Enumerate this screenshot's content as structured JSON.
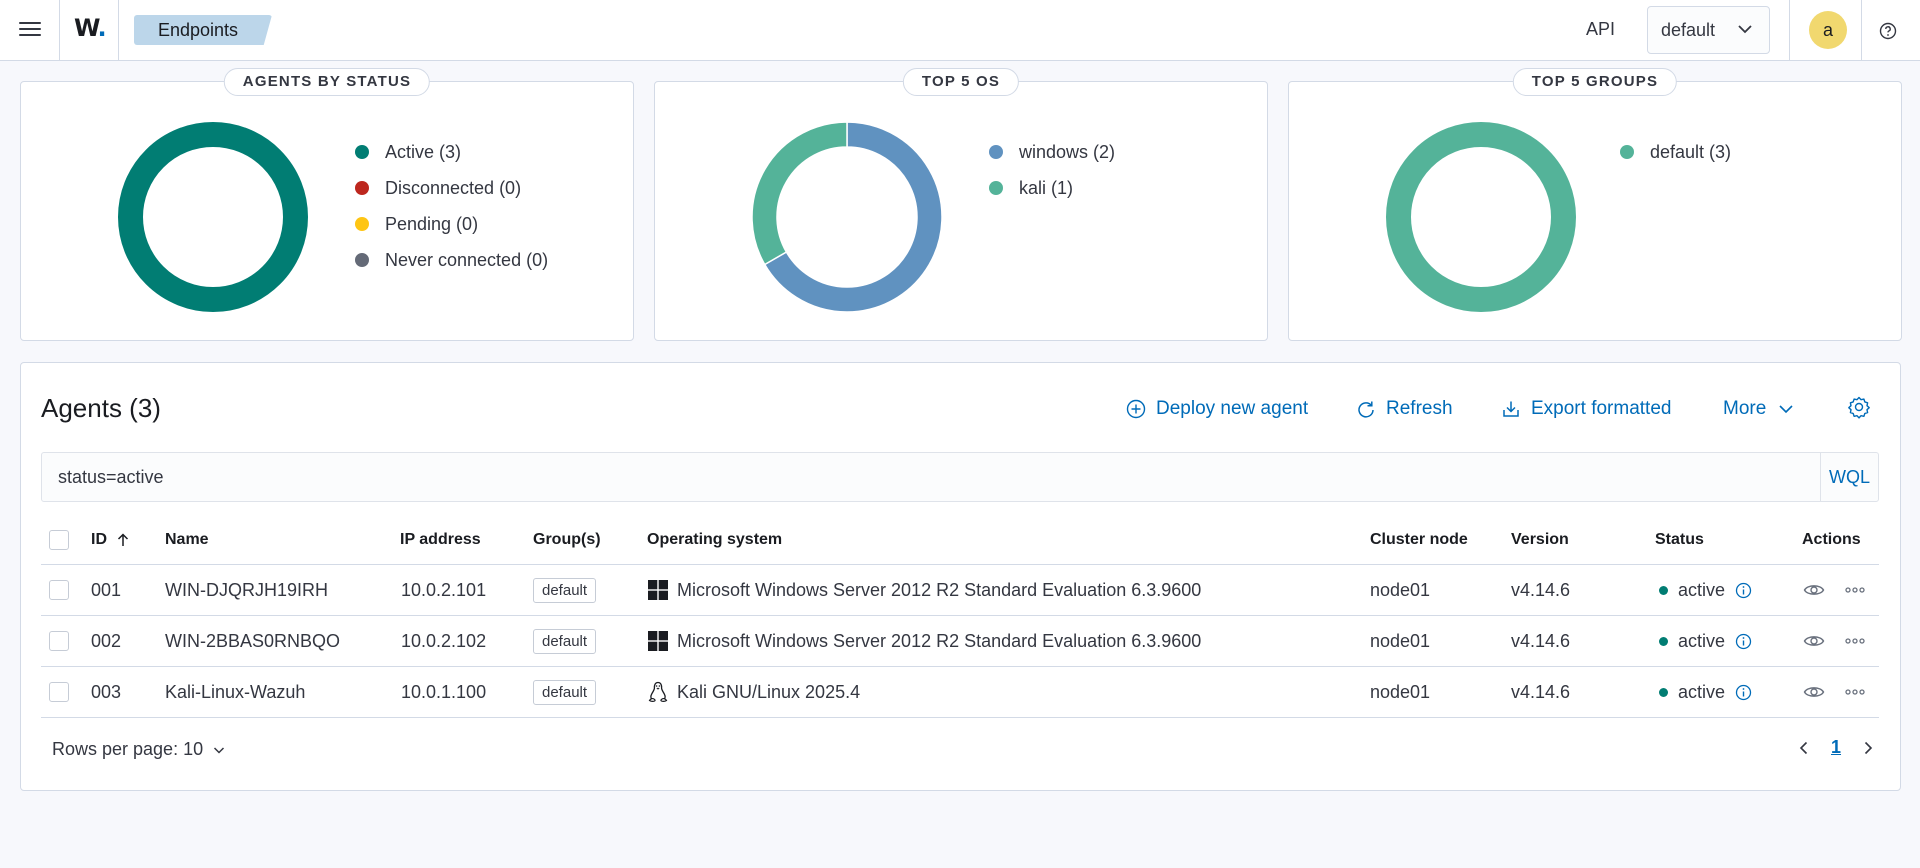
{
  "header": {
    "logo": "W",
    "breadcrumb": "Endpoints",
    "api_label": "API",
    "namespace": "default",
    "avatar_initial": "a"
  },
  "cards": [
    {
      "title": "AGENTS BY STATUS",
      "chart_type": "donut",
      "legend": [
        {
          "label": "Active (3)",
          "value": 3,
          "color": "#017d73"
        },
        {
          "label": "Disconnected (0)",
          "value": 0,
          "color": "#bd271e"
        },
        {
          "label": "Pending (0)",
          "value": 0,
          "color": "#fec514"
        },
        {
          "label": "Never connected (0)",
          "value": 0,
          "color": "#646a77"
        }
      ]
    },
    {
      "title": "TOP 5 OS",
      "chart_type": "donut",
      "legend": [
        {
          "label": "windows (2)",
          "value": 2,
          "color": "#6092c0"
        },
        {
          "label": "kali (1)",
          "value": 1,
          "color": "#54b399"
        }
      ]
    },
    {
      "title": "TOP 5 GROUPS",
      "chart_type": "donut",
      "legend": [
        {
          "label": "default (3)",
          "value": 3,
          "color": "#54b399"
        }
      ]
    }
  ],
  "agents": {
    "title": "Agents (3)",
    "actions": {
      "deploy": "Deploy new agent",
      "refresh": "Refresh",
      "export": "Export formatted",
      "more": "More"
    },
    "search": {
      "value": "status=active",
      "mode": "WQL"
    },
    "columns": {
      "id": "ID",
      "name": "Name",
      "ip": "IP address",
      "groups": "Group(s)",
      "os": "Operating system",
      "node": "Cluster node",
      "version": "Version",
      "status": "Status",
      "actions": "Actions"
    },
    "rows": [
      {
        "id": "001",
        "name": "WIN-DJQRJH19IRH",
        "ip": "10.0.2.101",
        "group": "default",
        "os_icon": "windows-icon",
        "os": "Microsoft Windows Server 2012 R2 Standard Evaluation 6.3.9600",
        "node": "node01",
        "version": "v4.14.6",
        "status": "active"
      },
      {
        "id": "002",
        "name": "WIN-2BBAS0RNBQO",
        "ip": "10.0.2.102",
        "group": "default",
        "os_icon": "windows-icon",
        "os": "Microsoft Windows Server 2012 R2 Standard Evaluation 6.3.9600",
        "node": "node01",
        "version": "v4.14.6",
        "status": "active"
      },
      {
        "id": "003",
        "name": "Kali-Linux-Wazuh",
        "ip": "10.0.1.100",
        "group": "default",
        "os_icon": "linux-icon",
        "os": "Kali GNU/Linux 2025.4",
        "node": "node01",
        "version": "v4.14.6",
        "status": "active"
      }
    ],
    "pagination": {
      "rows_per_page": "Rows per page: 10",
      "current_page": "1"
    }
  }
}
